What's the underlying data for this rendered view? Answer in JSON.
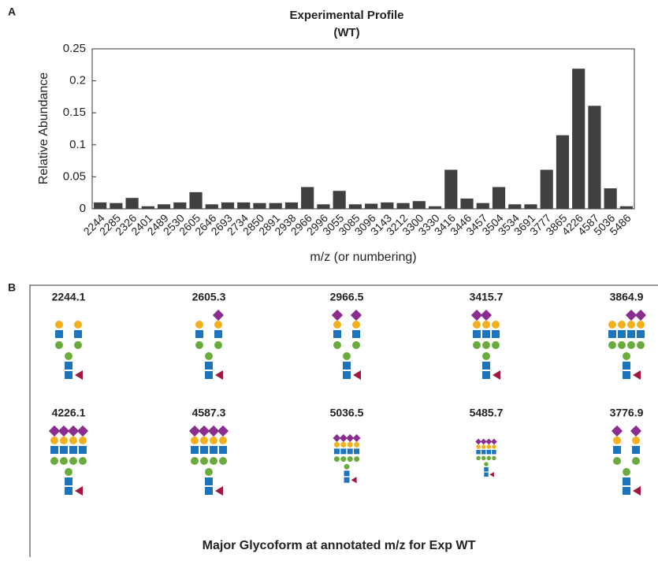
{
  "panel_a_label": "A",
  "chart_data": {
    "type": "bar",
    "title": "Experimental Profile",
    "subtitle": "(WT)",
    "x_label": "m/z (or numbering)",
    "y_label": "Relative Abundance",
    "categories": [
      "2244",
      "2285",
      "2326",
      "2401",
      "2489",
      "2530",
      "2605",
      "2646",
      "2693",
      "2734",
      "2850",
      "2891",
      "2938",
      "2966",
      "2996",
      "3055",
      "3085",
      "3096",
      "3143",
      "3212",
      "3300",
      "3330",
      "3416",
      "3446",
      "3457",
      "3504",
      "3534",
      "3691",
      "3777",
      "3865",
      "4226",
      "4587",
      "5036",
      "5486"
    ],
    "values": [
      0.01,
      0.009,
      0.017,
      0.004,
      0.007,
      0.01,
      0.026,
      0.007,
      0.01,
      0.01,
      0.009,
      0.009,
      0.01,
      0.034,
      0.007,
      0.028,
      0.007,
      0.008,
      0.01,
      0.009,
      0.012,
      0.004,
      0.061,
      0.016,
      0.009,
      0.034,
      0.007,
      0.007,
      0.061,
      0.115,
      0.219,
      0.161,
      0.032,
      0.004
    ],
    "color": "#404040",
    "ylim": [
      0,
      0.25
    ],
    "yticks": [
      0,
      0.05,
      0.1,
      0.15,
      0.2,
      0.25
    ],
    "grid": false
  },
  "panel_b": {
    "label": "B",
    "title": "Major Glycoform at annotated m/z for Exp WT",
    "glycoforms": [
      2244.1,
      2605.3,
      2966.5,
      3415.7,
      3864.9,
      4226.1,
      4587.3,
      5036.5,
      5485.7,
      3776.9
    ]
  }
}
